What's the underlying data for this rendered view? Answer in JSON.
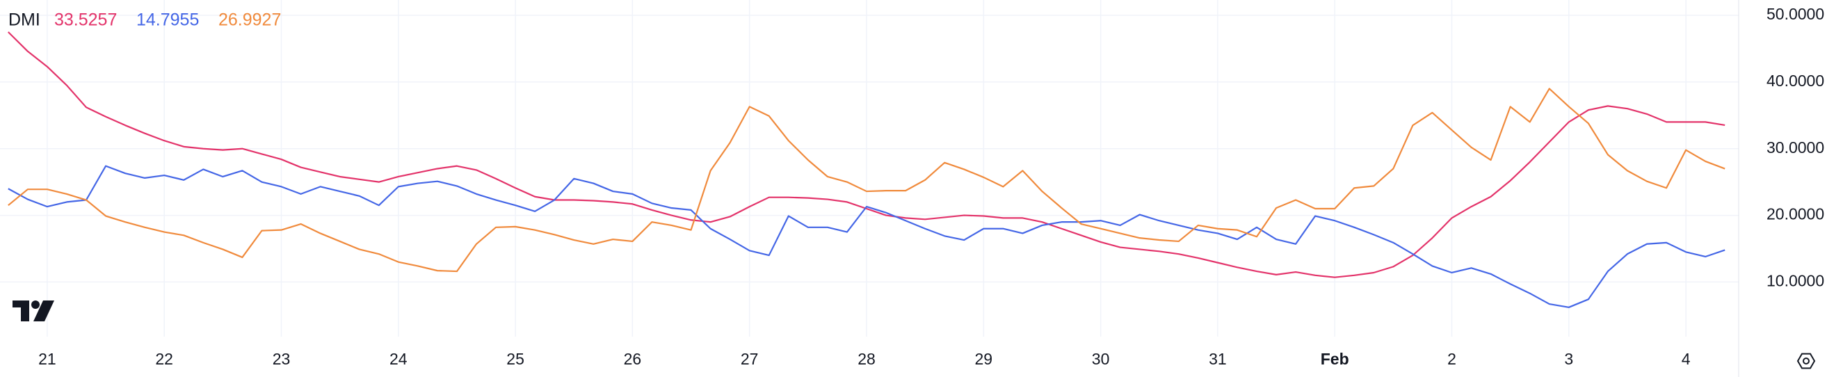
{
  "chart_data": {
    "type": "line",
    "title": "DMI",
    "categories": [
      null,
      null,
      "21",
      null,
      null,
      null,
      null,
      null,
      "22",
      null,
      null,
      null,
      null,
      null,
      "23",
      null,
      null,
      null,
      null,
      null,
      "24",
      null,
      null,
      null,
      null,
      null,
      "25",
      null,
      null,
      null,
      null,
      null,
      "26",
      null,
      null,
      null,
      null,
      null,
      "27",
      null,
      null,
      null,
      null,
      null,
      "28",
      null,
      null,
      null,
      null,
      null,
      "29",
      null,
      null,
      null,
      null,
      null,
      "30",
      null,
      null,
      null,
      null,
      null,
      "31",
      null,
      null,
      null,
      null,
      null,
      "Feb",
      null,
      null,
      null,
      null,
      null,
      "2",
      null,
      null,
      null,
      null,
      null,
      "3",
      null,
      null,
      null,
      null,
      null,
      "4",
      null,
      null
    ],
    "series": [
      {
        "color": "#e3336a",
        "values": [
          47.5,
          44.6,
          42.3,
          39.5,
          36.2,
          34.8,
          33.5,
          32.3,
          31.2,
          30.3,
          30.0,
          29.8,
          30.0,
          29.2,
          28.4,
          27.2,
          26.5,
          25.8,
          25.4,
          25.0,
          25.8,
          26.4,
          27.0,
          27.4,
          26.8,
          25.5,
          24.1,
          22.8,
          22.3,
          22.3,
          22.2,
          22.0,
          21.7,
          20.8,
          20.0,
          19.3,
          19.0,
          19.8,
          21.3,
          22.7,
          22.7,
          22.6,
          22.4,
          22.0,
          21.0,
          20.0,
          19.6,
          19.4,
          19.7,
          20.0,
          19.9,
          19.6,
          19.6,
          19.0,
          18.0,
          17.0,
          16.0,
          15.2,
          14.9,
          14.6,
          14.2,
          13.6,
          12.9,
          12.2,
          11.6,
          11.1,
          11.5,
          11.0,
          10.7,
          11.0,
          11.4,
          12.3,
          14.0,
          16.6,
          19.6,
          21.3,
          22.8,
          25.2,
          28.0,
          31.0,
          34.0,
          35.8,
          36.4,
          36.0,
          35.2,
          34.0,
          34.0,
          34.0,
          33.5257
        ]
      },
      {
        "color": "#4466e6",
        "values": [
          24.0,
          22.4,
          21.3,
          22.0,
          22.3,
          27.4,
          26.3,
          25.6,
          26.0,
          25.3,
          26.9,
          25.8,
          26.7,
          25.0,
          24.3,
          23.2,
          24.3,
          23.6,
          22.9,
          21.5,
          24.3,
          24.8,
          25.1,
          24.4,
          23.2,
          22.3,
          21.5,
          20.6,
          22.3,
          25.5,
          24.8,
          23.6,
          23.2,
          21.8,
          21.1,
          20.8,
          18.0,
          16.4,
          14.7,
          14.0,
          19.9,
          18.2,
          18.2,
          17.5,
          21.3,
          20.4,
          19.2,
          18.0,
          16.9,
          16.3,
          18.0,
          18.0,
          17.3,
          18.5,
          19.0,
          19.0,
          19.2,
          18.5,
          20.1,
          19.2,
          18.5,
          17.8,
          17.3,
          16.4,
          18.2,
          16.4,
          15.7,
          19.9,
          19.2,
          18.2,
          17.1,
          15.9,
          14.2,
          12.4,
          11.4,
          12.1,
          11.2,
          9.7,
          8.3,
          6.7,
          6.2,
          7.4,
          11.6,
          14.2,
          15.7,
          15.9,
          14.5,
          13.8,
          14.7955
        ]
      },
      {
        "color": "#f08a3c",
        "values": [
          21.5,
          23.9,
          23.9,
          23.2,
          22.3,
          19.9,
          19.0,
          18.2,
          17.5,
          17.0,
          15.9,
          14.9,
          13.7,
          17.7,
          17.8,
          18.7,
          17.3,
          16.1,
          14.9,
          14.2,
          13.0,
          12.4,
          11.7,
          11.6,
          15.7,
          18.2,
          18.3,
          17.8,
          17.1,
          16.3,
          15.7,
          16.4,
          16.1,
          19.0,
          18.5,
          17.8,
          26.7,
          30.9,
          36.3,
          34.9,
          31.2,
          28.3,
          25.8,
          25.0,
          23.6,
          23.7,
          23.7,
          25.3,
          27.9,
          26.9,
          25.7,
          24.3,
          26.7,
          23.6,
          21.1,
          18.7,
          18.0,
          17.3,
          16.6,
          16.3,
          16.1,
          18.5,
          18.0,
          17.8,
          16.8,
          21.1,
          22.3,
          21.0,
          21.0,
          24.1,
          24.4,
          27.0,
          33.5,
          35.4,
          32.8,
          30.2,
          28.3,
          36.3,
          34.0,
          39.0,
          36.3,
          33.8,
          29.1,
          26.7,
          25.1,
          24.1,
          29.8,
          28.1,
          26.9927
        ]
      }
    ],
    "ylim": [
      1.8,
      52.3
    ],
    "yticks": [
      {
        "value": 10,
        "label": "10.0000"
      },
      {
        "value": 20,
        "label": "20.0000"
      },
      {
        "value": 30,
        "label": "30.0000"
      },
      {
        "value": 40,
        "label": "40.0000"
      },
      {
        "value": 50,
        "label": "50.0000"
      }
    ],
    "grid": true
  }
}
